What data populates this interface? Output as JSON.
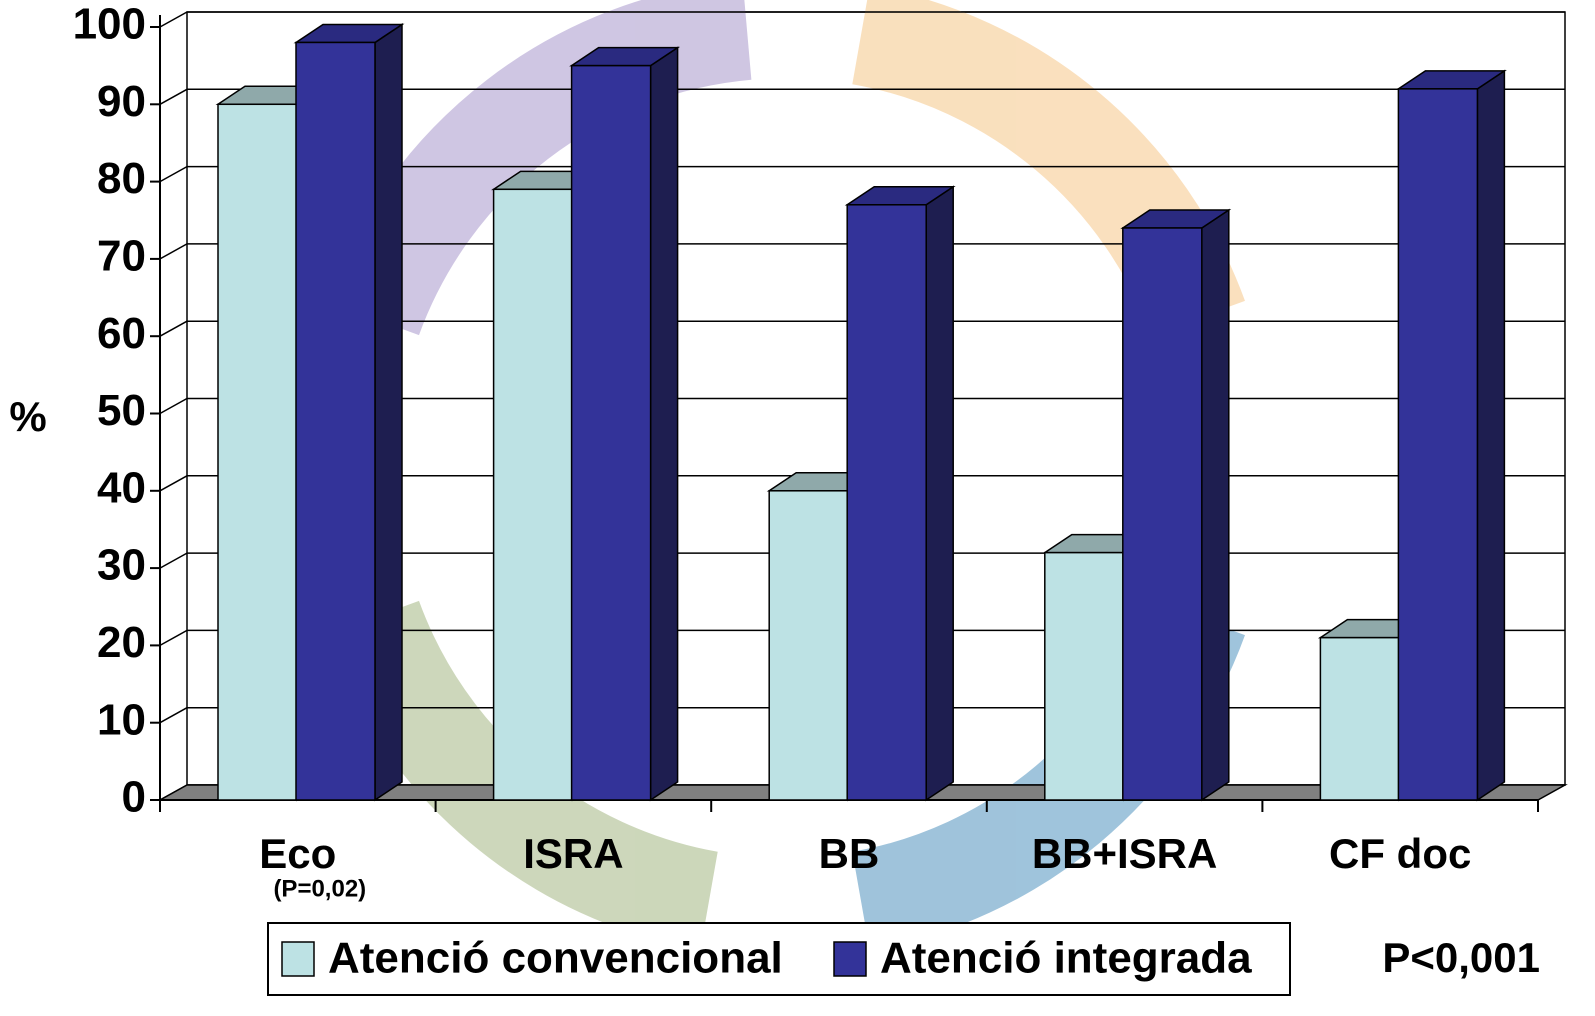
{
  "chart_data": {
    "type": "bar3d",
    "ylabel": "%",
    "categories": [
      "Eco",
      "ISRA",
      "BB",
      "BB+ISRA",
      "CF doc"
    ],
    "series": [
      {
        "name": "Atenció convencional",
        "color": "#bde2e4",
        "values": [
          90,
          79,
          40,
          32,
          21
        ]
      },
      {
        "name": "Atenció integrada",
        "color": "#333399",
        "values": [
          98,
          95,
          77,
          74,
          92
        ]
      }
    ],
    "ylim": [
      0,
      100
    ],
    "yticks": [
      0,
      10,
      20,
      30,
      40,
      50,
      60,
      70,
      80,
      90,
      100
    ],
    "grid": true,
    "annotations": [
      "(P=0,02)",
      "P<0,001"
    ]
  }
}
